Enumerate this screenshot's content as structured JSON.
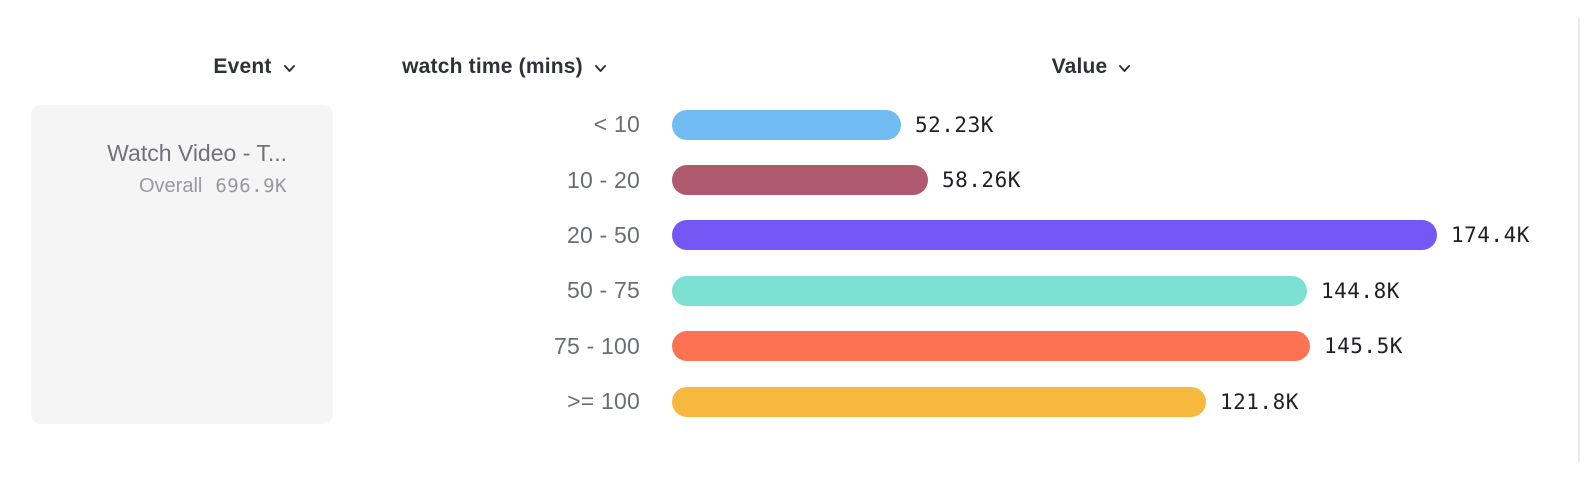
{
  "header": {
    "columns": [
      {
        "label": "Event"
      },
      {
        "label": "watch time (mins)"
      },
      {
        "label": "Value"
      }
    ]
  },
  "event_cell": {
    "title": "Watch Video - T...",
    "overall_label": "Overall",
    "overall_value": "696.9K"
  },
  "chart_data": {
    "type": "bar",
    "orientation": "horizontal",
    "title": "",
    "xlabel": "Value",
    "ylabel": "watch time (mins)",
    "categories": [
      "< 10",
      "10 - 20",
      "20 - 50",
      "50 - 75",
      "75 - 100",
      ">= 100"
    ],
    "values": [
      52.23,
      58.26,
      174.4,
      144.8,
      145.5,
      121.8
    ],
    "value_unit": "K",
    "value_labels": [
      "52.23K",
      "58.26K",
      "174.4K",
      "144.8K",
      "145.5K",
      "121.8K"
    ],
    "bar_colors": [
      "#70BBF2",
      "#AF5A6F",
      "#7458F5",
      "#7CE0D2",
      "#FC7354",
      "#F6B93E"
    ],
    "total_label": "Overall",
    "total_value": "696.9K",
    "xlim": [
      0,
      174.4
    ],
    "grid": false,
    "legend": false
  },
  "colors": {
    "header_text": "#2f3138",
    "category_text": "#6a6d74",
    "value_text": "#212125",
    "panel_bg": "#f5f5f6",
    "border": "#e9e9eb"
  }
}
